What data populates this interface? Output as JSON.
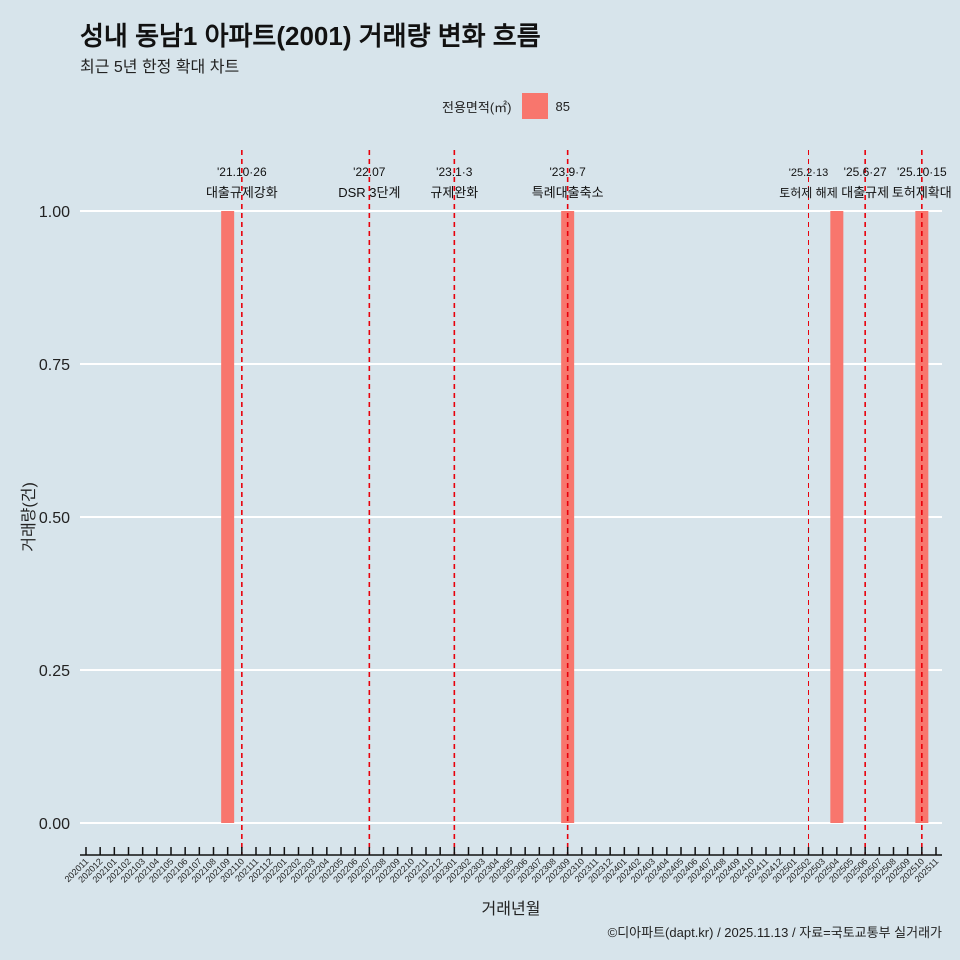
{
  "title": "성내 동남1 아파트(2001) 거래량 변화 흐름",
  "subtitle": "최근 5년 한정 확대 차트",
  "caption": "©디아파트(dapt.kr) / 2025.11.13 / 자료=국토교통부 실거래가",
  "colors": {
    "bar": "#F8766D",
    "vline": "#E8000B",
    "grid": "#ffffff"
  },
  "chart_data": {
    "type": "bar",
    "xlabel": "거래년월",
    "ylabel": "거래량(건)",
    "ylim": [
      0,
      1
    ],
    "yticks": [
      "0.00",
      "0.25",
      "0.50",
      "0.75",
      "1.00"
    ],
    "legend": {
      "title": "전용면적(㎡)",
      "entries": [
        "85"
      ],
      "placement": "top"
    },
    "categories": [
      "202011",
      "202012",
      "202101",
      "202102",
      "202103",
      "202104",
      "202105",
      "202106",
      "202107",
      "202108",
      "202109",
      "202110",
      "202111",
      "202112",
      "202201",
      "202202",
      "202203",
      "202204",
      "202205",
      "202206",
      "202207",
      "202208",
      "202209",
      "202210",
      "202211",
      "202212",
      "202301",
      "202302",
      "202303",
      "202304",
      "202305",
      "202306",
      "202307",
      "202308",
      "202309",
      "202310",
      "202311",
      "202312",
      "202401",
      "202402",
      "202403",
      "202404",
      "202405",
      "202406",
      "202407",
      "202408",
      "202409",
      "202410",
      "202411",
      "202412",
      "202501",
      "202502",
      "202503",
      "202504",
      "202505",
      "202506",
      "202507",
      "202508",
      "202509",
      "202510",
      "202511"
    ],
    "series": [
      {
        "name": "85",
        "points": [
          {
            "x": "202109",
            "y": 1
          },
          {
            "x": "202309",
            "y": 1
          },
          {
            "x": "202504",
            "y": 1
          },
          {
            "x": "202510",
            "y": 1
          }
        ]
      }
    ],
    "annotations": [
      {
        "x": "202110",
        "date": "'21.10·26",
        "label": "대출규제강화"
      },
      {
        "x": "202207",
        "date": "'22.07",
        "label": "DSR 3단계"
      },
      {
        "x": "202301",
        "date": "'23.1·3",
        "label": "규제완화"
      },
      {
        "x": "202309",
        "date": "'23.9·7",
        "label": "특례대출축소"
      },
      {
        "x": "202502",
        "date": "'25.2·13",
        "label": "토허제 해제"
      },
      {
        "x": "202506",
        "date": "'25.6·27",
        "label": "대출규제"
      },
      {
        "x": "202510",
        "date": "'25.10·15",
        "label": "토허제확대"
      }
    ]
  }
}
